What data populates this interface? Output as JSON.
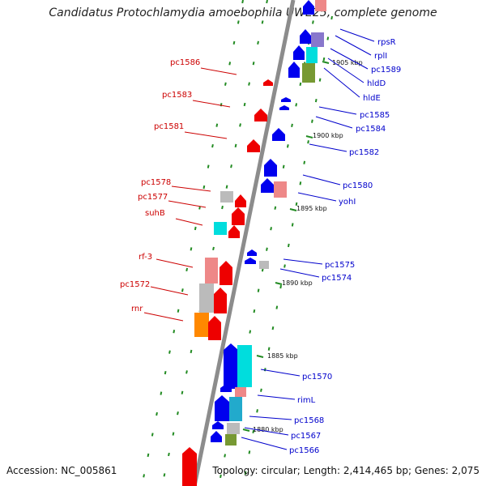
{
  "title": "Candidatus Protochlamydia amoebophila UWE25, complete genome",
  "accession": "Accession: NC_005861",
  "topology": "Topology: circular; Length: 2,414,465 bp; Genes: 2,075",
  "colors": {
    "backbone": "#8c8c8c",
    "reverse_label": "#cc0000",
    "forward_label": "#0000cc",
    "tick": "#228b22",
    "red": "#ee0000",
    "blue": "#0000ee",
    "pink": "#ee8888",
    "gray": "#bbbbbb",
    "cyan": "#00dddd",
    "teal": "#22aacc",
    "olive": "#779933",
    "purple": "#8877cc",
    "orange": "#ff8800",
    "navy": "#112266"
  },
  "ruler": [
    "1905 kbp",
    "1900 kbp",
    "1895 kbp",
    "1890 kbp",
    "1885 kbp",
    "1880 kbp"
  ],
  "reverse_labels": [
    "pc1586",
    "pc1583",
    "pc1581",
    "pc1578",
    "pc1577",
    "suhB",
    "rf-3",
    "pc1572",
    "rnr"
  ],
  "forward_labels": [
    "rpsR",
    "rplI",
    "pc1589",
    "hldD",
    "hldE",
    "pc1585",
    "pc1584",
    "pc1582",
    "pc1580",
    "yohI",
    "pc1575",
    "pc1574",
    "pc1570",
    "rimL",
    "pc1568",
    "pc1567",
    "pc1566"
  ]
}
